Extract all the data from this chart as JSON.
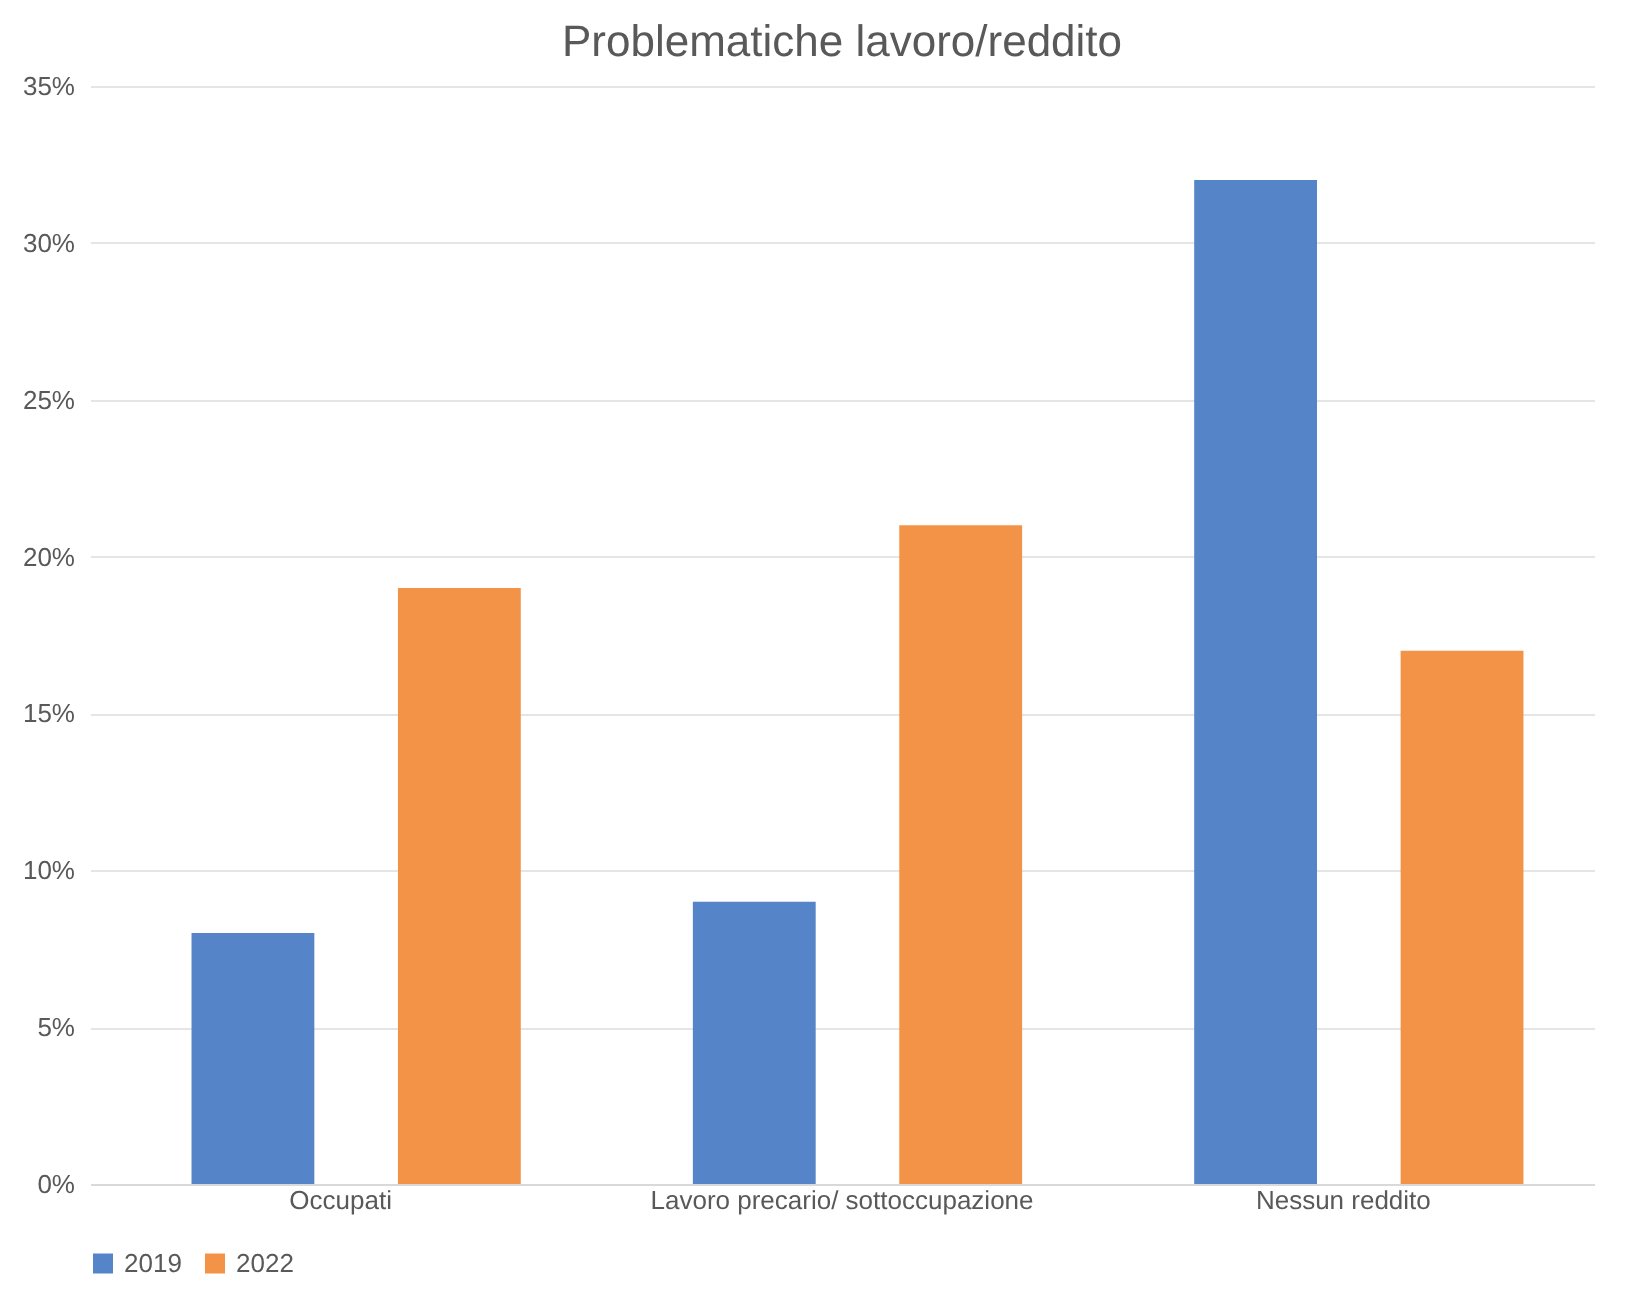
{
  "chart_data": {
    "type": "bar",
    "title": "Problematiche lavoro/reddito",
    "categories": [
      "Occupati",
      "Lavoro precario/ sottoccupazione",
      "Nessun reddito"
    ],
    "series": [
      {
        "name": "2019",
        "color": "#5585c8",
        "values": [
          8,
          9,
          32
        ]
      },
      {
        "name": "2022",
        "color": "#f39347",
        "values": [
          19,
          21,
          17
        ]
      }
    ],
    "ylim": [
      0,
      35
    ],
    "yticks": [
      {
        "value": 0,
        "label": "0%"
      },
      {
        "value": 5,
        "label": "5%"
      },
      {
        "value": 10,
        "label": "10%"
      },
      {
        "value": 15,
        "label": "15%"
      },
      {
        "value": 20,
        "label": "20%"
      },
      {
        "value": 25,
        "label": "25%"
      },
      {
        "value": 30,
        "label": "30%"
      },
      {
        "value": 35,
        "label": "35%"
      }
    ],
    "grid": "y",
    "legend": "bottom"
  }
}
